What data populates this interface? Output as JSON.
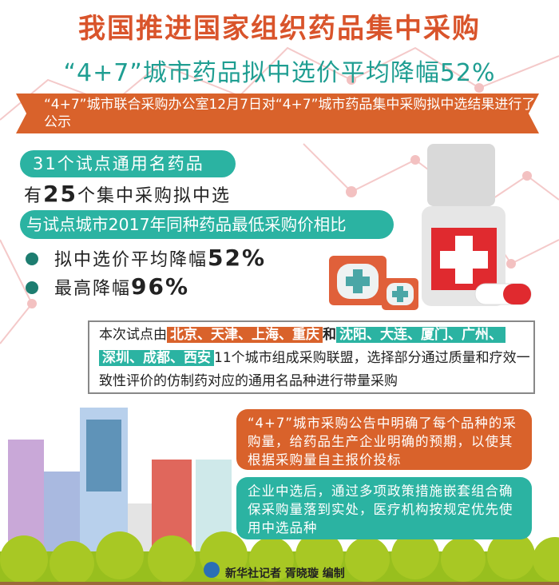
{
  "header": {
    "title": "我国推进国家组织药品集中采购",
    "subtitle": "“4+7”城市药品拟中选价平均降幅52%"
  },
  "banner": {
    "text": "“4+7”城市联合采购办公室12月7日对“4+7”城市药品集中采购拟中选结果进行了公示"
  },
  "stats": {
    "pill1": "31个试点通用名药品",
    "line_prefix": "有",
    "line_number": "25",
    "line_suffix": "个集中采购拟中选",
    "pill2": "与试点城市2017年同种药品最低采购价相比",
    "bullets": [
      {
        "text": "拟中选价平均降幅",
        "value": "52%"
      },
      {
        "text": "最高降幅",
        "value": "96%"
      }
    ]
  },
  "cities": {
    "intro": "本次试点由",
    "group1": "北京、天津、上海、重庆",
    "and": "和",
    "group2a": "沈阳、大连、厦门、广州、",
    "group2b": "深圳、成都、西安",
    "rest": "11个城市组成采购联盟，选择部分通过质量和疗效一致性评价的仿制药对应的通用名品种进行带量采购"
  },
  "notes": [
    {
      "text": "“4+7”城市采购公告中明确了每个品种的采购量，给药品生产企业明确的预期，以使其根据采购量自主报价投标"
    },
    {
      "text": "企业中选后，通过多项政策措施嵌套组合确保采购量落到实处，医疗机构按规定优先使用中选品种"
    }
  ],
  "footer": {
    "credit": "新华社记者 胥晓璇 编制"
  },
  "colors": {
    "accent_orange": "#d9622b",
    "accent_teal": "#2bb3a2",
    "title": "#d9542b"
  }
}
